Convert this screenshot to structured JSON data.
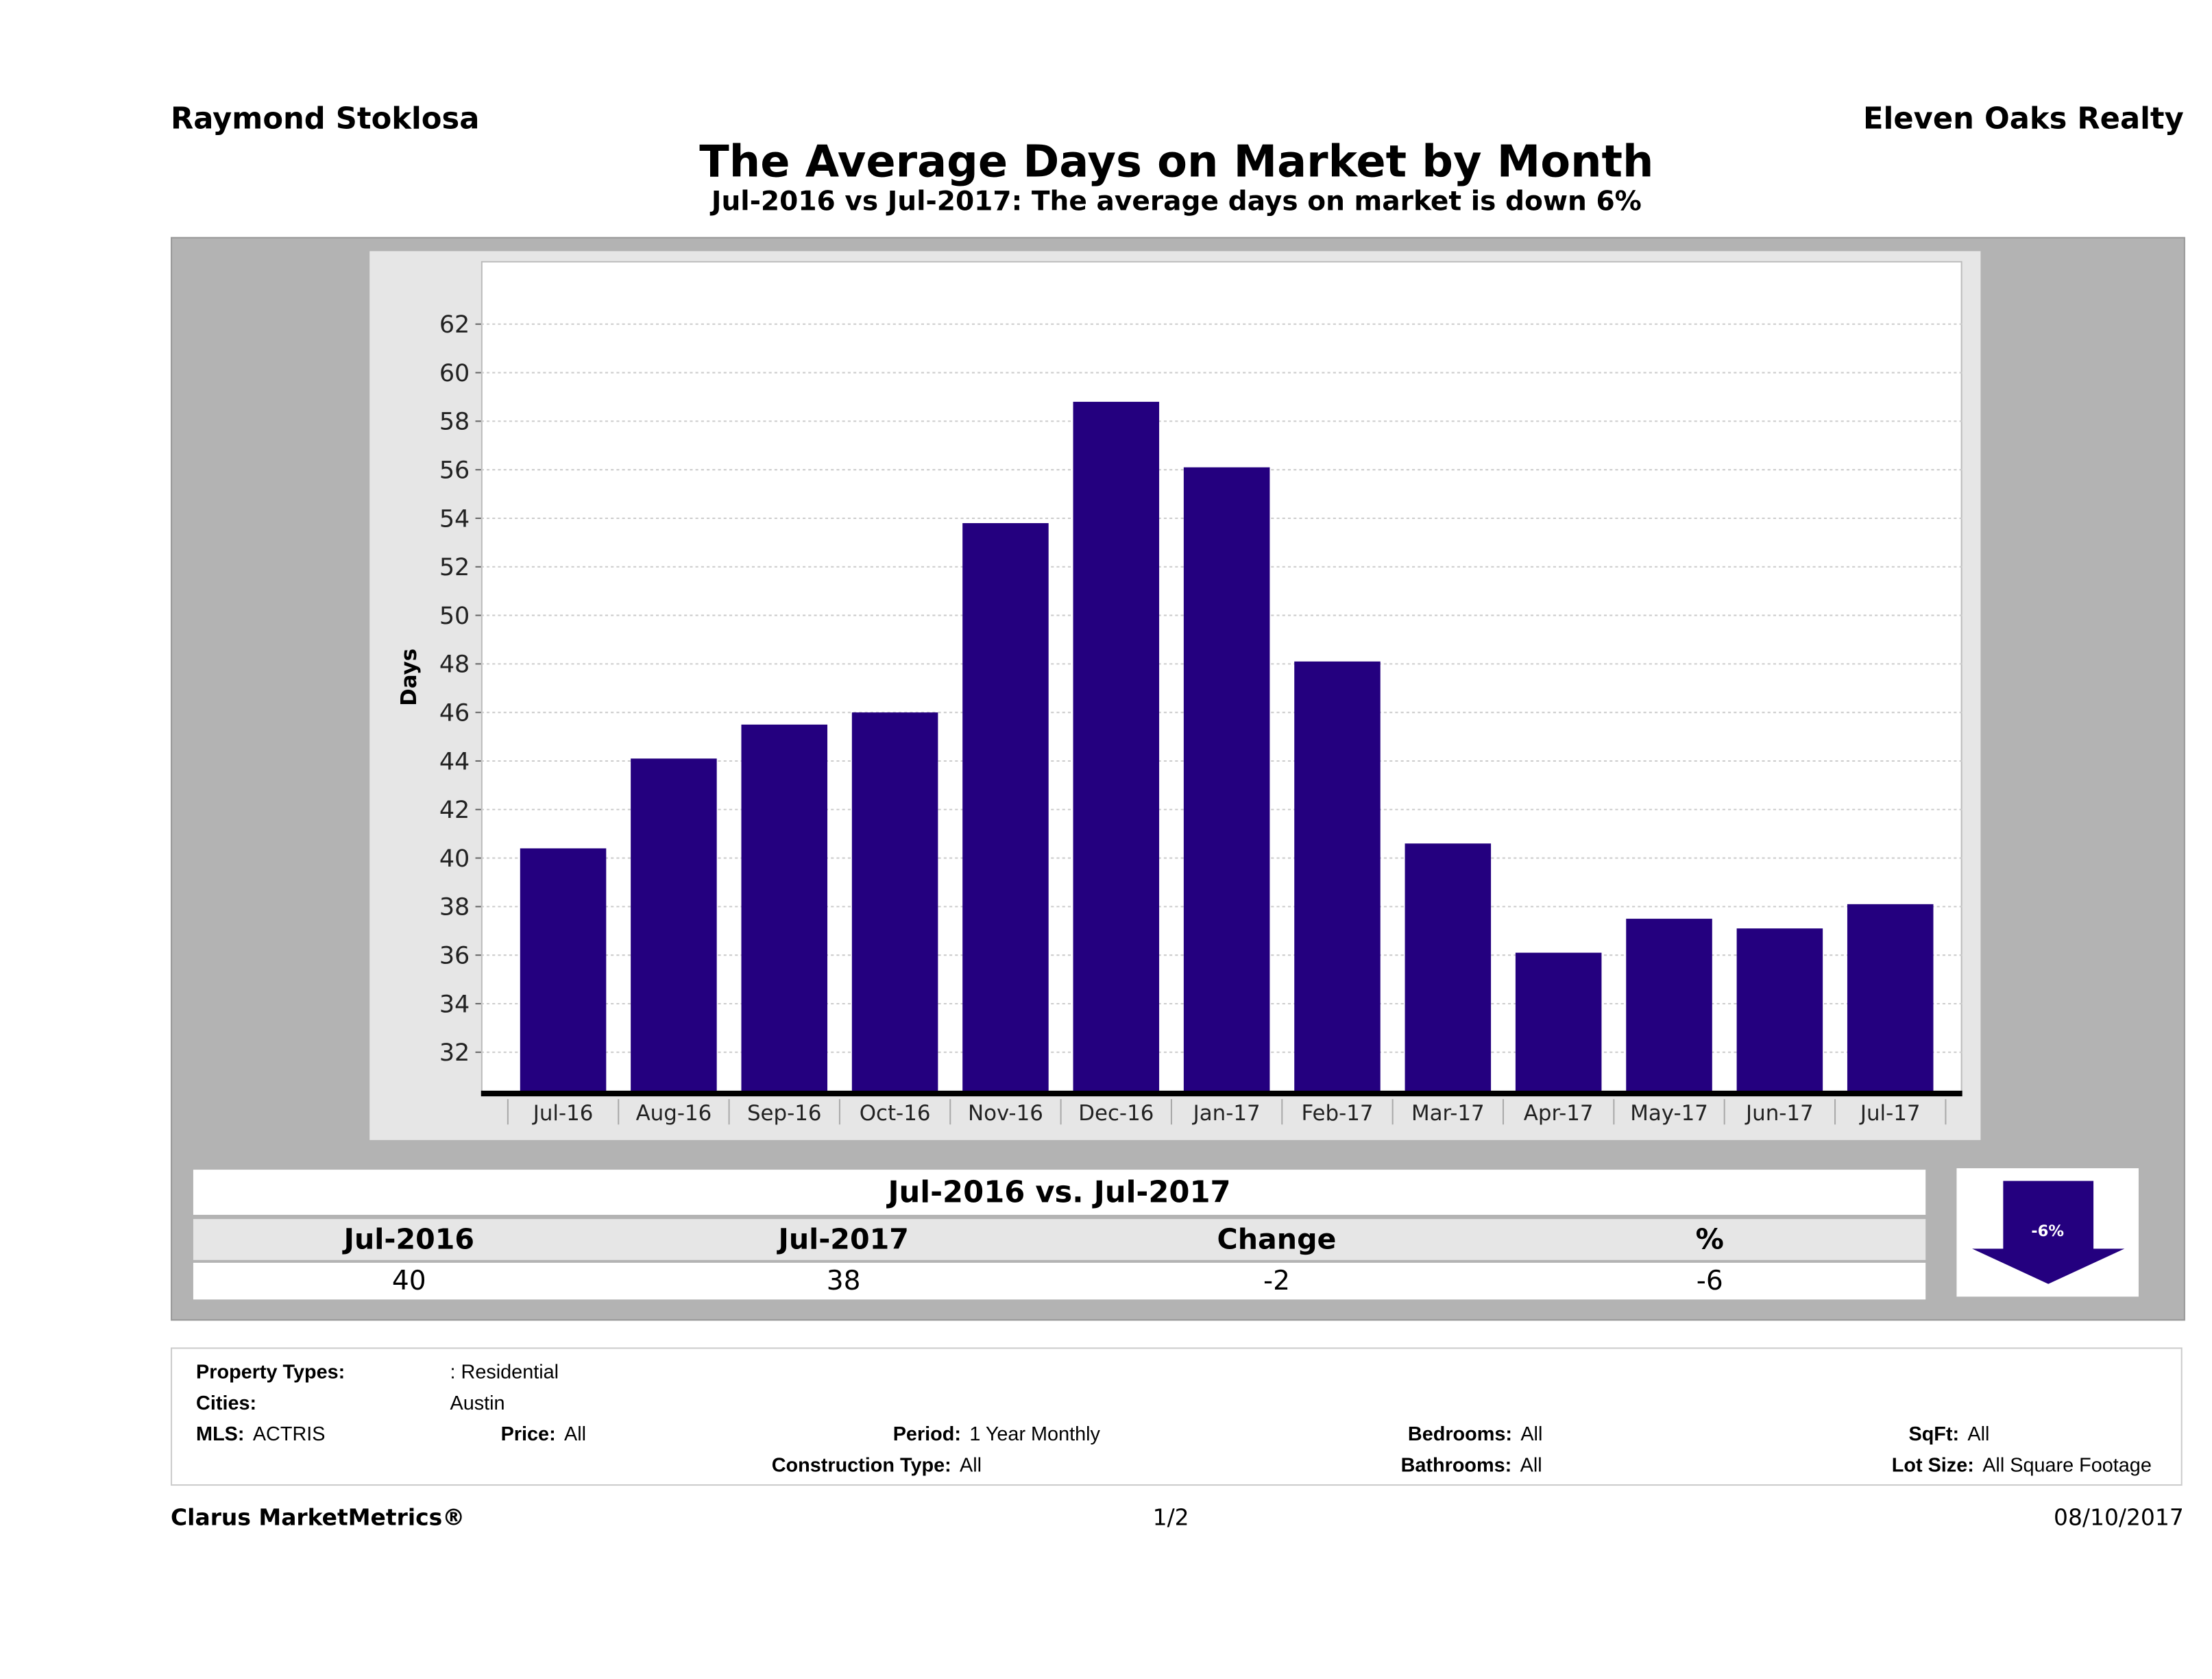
{
  "header": {
    "agent": "Raymond Stoklosa",
    "company": "Eleven Oaks Realty",
    "title": "The Average Days on Market by Month",
    "subtitle": "Jul-2016 vs Jul-2017: The average days on market is down 6%"
  },
  "chart_data": {
    "type": "bar",
    "title": "The Average Days on Market by Month",
    "ylabel": "Days",
    "xlabel": "",
    "categories": [
      "Jul-16",
      "Aug-16",
      "Sep-16",
      "Oct-16",
      "Nov-16",
      "Dec-16",
      "Jan-17",
      "Feb-17",
      "Mar-17",
      "Apr-17",
      "May-17",
      "Jun-17",
      "Jul-17"
    ],
    "values": [
      40.4,
      44.1,
      45.5,
      46.0,
      53.8,
      58.8,
      56.1,
      48.1,
      40.6,
      36.1,
      37.5,
      37.1,
      38.1
    ],
    "yticks": [
      32,
      34,
      36,
      38,
      40,
      42,
      44,
      46,
      48,
      50,
      52,
      54,
      56,
      58,
      60,
      62
    ],
    "ylim": [
      30.3,
      64.6
    ],
    "grid": true,
    "bar_color": "#24007f"
  },
  "summary": {
    "heading": "Jul-2016 vs. Jul-2017",
    "columns": [
      "Jul-2016",
      "Jul-2017",
      "Change",
      "%"
    ],
    "values": [
      "40",
      "38",
      "-2",
      "-6"
    ],
    "arrow_label": "-6%",
    "arrow_direction": "down"
  },
  "filters": {
    "property_types_label": "Property Types:",
    "property_types": ": Residential",
    "cities_label": "Cities:",
    "cities": "Austin",
    "mls_label": "MLS:",
    "mls": "ACTRIS",
    "price_label": "Price:",
    "price": "All",
    "period_label": "Period:",
    "period": "1 Year Monthly",
    "bedrooms_label": "Bedrooms:",
    "bedrooms": "All",
    "sqft_label": "SqFt:",
    "sqft": "All",
    "construction_label": "Construction Type:",
    "construction": "All",
    "bathrooms_label": "Bathrooms:",
    "bathrooms": "All",
    "lot_size_label": "Lot Size:",
    "lot_size": "All Square Footage"
  },
  "footer": {
    "brand": "Clarus MarketMetrics®",
    "page": "1/2",
    "date": "08/10/2017"
  }
}
